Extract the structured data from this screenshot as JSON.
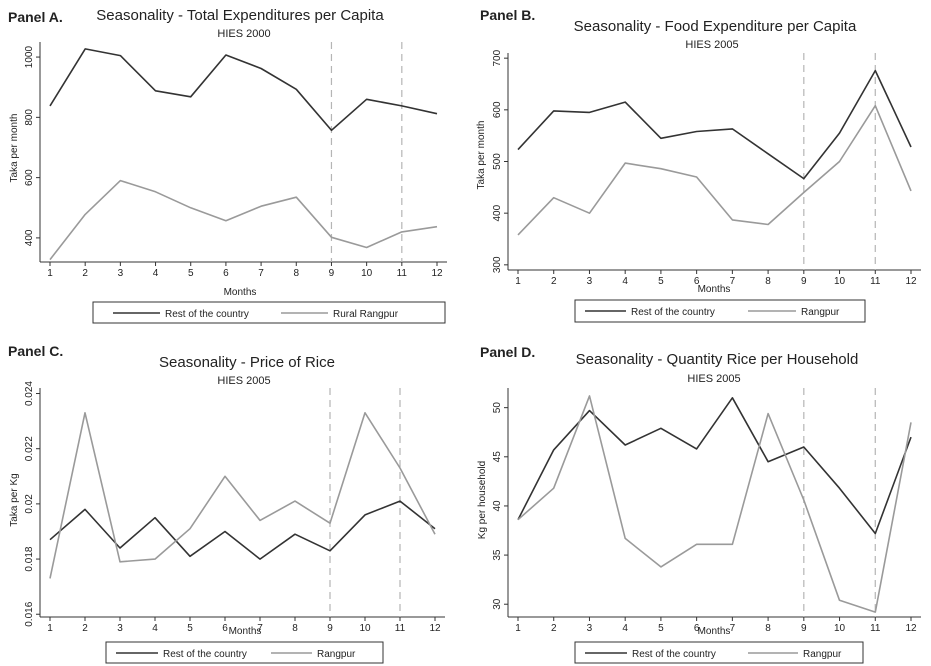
{
  "colors": {
    "rest": "#333333",
    "rangpur": "#9a9a9a",
    "ref_line": "#b5b5b5",
    "axis": "#333333",
    "background": "#ffffff"
  },
  "panels": [
    {
      "label": "Panel A.",
      "title": "Seasonality - Total Expenditures per Capita",
      "subtitle": "HIES 2000",
      "legend": [
        "Rest of the country",
        "Rural Rangpur"
      ]
    },
    {
      "label": "Panel B.",
      "title": "Seasonality - Food Expenditure per Capita",
      "subtitle": "HIES 2005",
      "legend": [
        "Rest of the country",
        "Rangpur"
      ]
    },
    {
      "label": "Panel C.",
      "title": "Seasonality - Price of Rice",
      "subtitle": "HIES 2005",
      "legend": [
        "Rest of the country",
        "Rangpur"
      ]
    },
    {
      "label": "Panel D.",
      "title": "Seasonality - Quantity Rice per Household",
      "subtitle": "HIES 2005",
      "legend": [
        "Rest of the country",
        "Rangpur"
      ]
    }
  ],
  "chart_data": [
    {
      "type": "line",
      "title": "Seasonality - Total Expenditures per Capita",
      "subtitle": "HIES 2000",
      "xlabel": "Months",
      "ylabel": "Taka per month",
      "x": [
        1,
        2,
        3,
        4,
        5,
        6,
        7,
        8,
        9,
        10,
        11,
        12
      ],
      "xlim": [
        1,
        12
      ],
      "ylim": [
        320,
        1050
      ],
      "yticks": [
        400,
        600,
        800,
        1000
      ],
      "ytick_labels": [
        "400",
        "600",
        "800",
        "1000"
      ],
      "vlines": [
        9,
        11
      ],
      "grid": false,
      "legend_position": "bottom",
      "series": [
        {
          "name": "Rest of the country",
          "values": [
            838,
            1027,
            1005,
            888,
            868,
            1007,
            962,
            893,
            757,
            860,
            838,
            812
          ]
        },
        {
          "name": "Rural Rangpur",
          "values": [
            328,
            478,
            590,
            553,
            500,
            457,
            505,
            535,
            402,
            368,
            420,
            437
          ]
        }
      ]
    },
    {
      "type": "line",
      "title": "Seasonality - Food Expenditure per Capita",
      "subtitle": "HIES 2005",
      "xlabel": "Months",
      "ylabel": "Taka per month",
      "x": [
        1,
        2,
        3,
        4,
        5,
        6,
        7,
        8,
        9,
        10,
        11,
        12
      ],
      "xlim": [
        1,
        12
      ],
      "ylim": [
        290,
        710
      ],
      "yticks": [
        300,
        400,
        500,
        600,
        700
      ],
      "ytick_labels": [
        "300",
        "400",
        "500",
        "600",
        "700"
      ],
      "vlines": [
        9,
        11
      ],
      "grid": false,
      "legend_position": "bottom",
      "series": [
        {
          "name": "Rest of the country",
          "values": [
            523,
            598,
            595,
            615,
            545,
            558,
            563,
            515,
            467,
            555,
            676,
            528
          ]
        },
        {
          "name": "Rangpur",
          "values": [
            358,
            430,
            400,
            497,
            486,
            470,
            387,
            378,
            440,
            500,
            608,
            443
          ]
        }
      ]
    },
    {
      "type": "line",
      "title": "Seasonality - Price of Rice",
      "subtitle": "HIES 2005",
      "xlabel": "Months",
      "ylabel": "Taka per Kg",
      "x": [
        1,
        2,
        3,
        4,
        5,
        6,
        7,
        8,
        9,
        10,
        11,
        12
      ],
      "xlim": [
        1,
        12
      ],
      "ylim": [
        0.0159,
        0.0242
      ],
      "yticks": [
        0.016,
        0.018,
        0.02,
        0.022,
        0.024
      ],
      "ytick_labels": [
        "0.016",
        "0.018",
        "0.02",
        "0.022",
        "0.024"
      ],
      "vlines": [
        9,
        11
      ],
      "grid": false,
      "legend_position": "bottom",
      "series": [
        {
          "name": "Rest of the country",
          "values": [
            0.0187,
            0.0198,
            0.0184,
            0.0195,
            0.0181,
            0.019,
            0.018,
            0.0189,
            0.0183,
            0.0196,
            0.0201,
            0.0191
          ]
        },
        {
          "name": "Rangpur",
          "values": [
            0.0173,
            0.0233,
            0.0179,
            0.018,
            0.0191,
            0.021,
            0.0194,
            0.0201,
            0.0193,
            0.0233,
            0.0213,
            0.0189
          ]
        }
      ]
    },
    {
      "type": "line",
      "title": "Seasonality - Quantity Rice per Household",
      "subtitle": "HIES 2005",
      "xlabel": "Months",
      "ylabel": "Kg per household",
      "x": [
        1,
        2,
        3,
        4,
        5,
        6,
        7,
        8,
        9,
        10,
        11,
        12
      ],
      "xlim": [
        1,
        12
      ],
      "ylim": [
        28.7,
        52
      ],
      "yticks": [
        30,
        35,
        40,
        45,
        50
      ],
      "ytick_labels": [
        "30",
        "35",
        "40",
        "45",
        "50"
      ],
      "vlines": [
        9,
        11
      ],
      "grid": false,
      "legend_position": "bottom",
      "series": [
        {
          "name": "Rest of the country",
          "values": [
            38.6,
            45.7,
            49.7,
            46.2,
            47.9,
            45.8,
            51.0,
            44.5,
            46.0,
            41.8,
            37.2,
            47.0
          ]
        },
        {
          "name": "Rangpur",
          "values": [
            38.6,
            41.8,
            51.2,
            36.7,
            33.8,
            36.1,
            36.1,
            49.4,
            40.6,
            30.4,
            29.2,
            48.5
          ]
        }
      ]
    }
  ]
}
